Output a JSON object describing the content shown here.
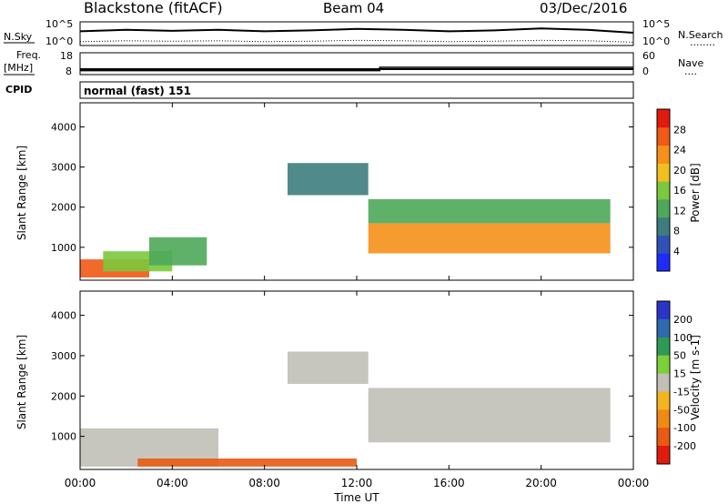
{
  "header": {
    "station": "Blackstone (fitACF)",
    "beam": "Beam 04",
    "date": "03/Dec/2016"
  },
  "noise_panel": {
    "left_label": "N.Sky",
    "left_tick_top": "10^5",
    "left_tick_bottom": "10^0",
    "right_tick_top": "10^5",
    "right_tick_bottom": "10^0",
    "right_label": "N.Search",
    "right_dots": "........"
  },
  "freq_panel": {
    "label_line1": "Freq.",
    "label_line2": "[MHz]",
    "tick_top": "18",
    "tick_bottom": "8",
    "right_tick_top": "60",
    "right_tick_bottom": "0",
    "right_label": "Nave",
    "right_dots": "...."
  },
  "cpid_panel": {
    "label": "CPID",
    "text": "normal (fast) 151"
  },
  "power_panel": {
    "ylabel": "Slant Range [km]",
    "yticks": [
      "1000",
      "2000",
      "3000",
      "4000"
    ],
    "colorbar_label": "Power [dB]",
    "colorbar_ticks": [
      "4",
      "8",
      "12",
      "16",
      "20",
      "24",
      "28"
    ],
    "colorbar_colors": [
      "#1f2bff",
      "#2f52b8",
      "#3e7d7e",
      "#4ea85a",
      "#7cc83c",
      "#f0c020",
      "#f59018",
      "#f05a14",
      "#e01b0e"
    ]
  },
  "velocity_panel": {
    "ylabel": "Slant Range [km]",
    "yticks": [
      "1000",
      "2000",
      "3000",
      "4000"
    ],
    "colorbar_label": "Velocity [m s-1]",
    "colorbar_ticks": [
      "200",
      "100",
      "50",
      "15",
      "-15",
      "-50",
      "-100",
      "-200"
    ],
    "colorbar_colors": [
      "#2a35c8",
      "#2f69b0",
      "#2f9a55",
      "#7cd03a",
      "#c0c0b8",
      "#f3b51f",
      "#f08a16",
      "#ea5a12",
      "#e01b0e"
    ]
  },
  "xaxis": {
    "label": "Time UT",
    "ticks": [
      "00:00",
      "04:00",
      "08:00",
      "12:00",
      "16:00",
      "20:00",
      "00:00"
    ]
  },
  "chart_data": [
    {
      "type": "line",
      "title": "N.Sky / N.Search",
      "x_hours": [
        0,
        2,
        4,
        6,
        8,
        10,
        12,
        14,
        16,
        18,
        20,
        22,
        24
      ],
      "series": [
        {
          "name": "N.Sky",
          "values_log10": [
            3.0,
            3.3,
            3.1,
            3.3,
            3.0,
            3.2,
            3.5,
            3.3,
            3.0,
            3.2,
            3.6,
            3.3,
            2.7
          ]
        },
        {
          "name": "N.Search",
          "values_log10": [
            0.8,
            1.0,
            0.9,
            1.0,
            0.8,
            0.9,
            1.1,
            1.0,
            0.8,
            0.9,
            1.1,
            1.0,
            0.7
          ]
        }
      ],
      "ylim": [
        0,
        5
      ]
    },
    {
      "type": "line",
      "title": "Freq. / Nave",
      "series": [
        {
          "name": "Freq.",
          "x_hours": [
            0,
            24
          ],
          "values": [
            10.5,
            10.5
          ],
          "ylim": [
            8,
            18
          ]
        },
        {
          "name": "Nave",
          "x_hours": [
            0,
            13,
            13,
            24
          ],
          "values": [
            11,
            11,
            20,
            20
          ],
          "ylim": [
            0,
            60
          ]
        }
      ]
    },
    {
      "type": "heatmap",
      "title": "Power [dB]",
      "xlabel": "Time UT",
      "ylabel": "Slant Range [km]",
      "xlim_hours": [
        0,
        24
      ],
      "ylim_km": [
        180,
        4600
      ],
      "clim": [
        0,
        30
      ],
      "bands": [
        {
          "t0": 0.0,
          "t1": 3.0,
          "r0": 250,
          "r1": 700,
          "level": 24
        },
        {
          "t0": 1.0,
          "t1": 4.0,
          "r0": 400,
          "r1": 900,
          "level": 16
        },
        {
          "t0": 3.0,
          "t1": 5.5,
          "r0": 550,
          "r1": 1250,
          "level": 10
        },
        {
          "t0": 9.0,
          "t1": 12.5,
          "r0": 2300,
          "r1": 3100,
          "level": 9
        },
        {
          "t0": 12.5,
          "t1": 23.0,
          "r0": 850,
          "r1": 1600,
          "level": 20
        },
        {
          "t0": 12.5,
          "t1": 23.0,
          "r0": 1600,
          "r1": 2200,
          "level": 10
        }
      ]
    },
    {
      "type": "heatmap",
      "title": "Velocity [m s-1]",
      "xlabel": "Time UT",
      "ylabel": "Slant Range [km]",
      "xlim_hours": [
        0,
        24
      ],
      "ylim_km": [
        180,
        4600
      ],
      "clim": [
        -200,
        200
      ],
      "bands": [
        {
          "t0": 0.0,
          "t1": 6.0,
          "r0": 250,
          "r1": 1200,
          "velocity": 0
        },
        {
          "t0": 2.5,
          "t1": 12.0,
          "r0": 250,
          "r1": 450,
          "velocity": -60
        },
        {
          "t0": 9.0,
          "t1": 12.5,
          "r0": 2300,
          "r1": 3100,
          "velocity": 0
        },
        {
          "t0": 12.5,
          "t1": 23.0,
          "r0": 850,
          "r1": 2200,
          "velocity": 0
        }
      ]
    }
  ]
}
